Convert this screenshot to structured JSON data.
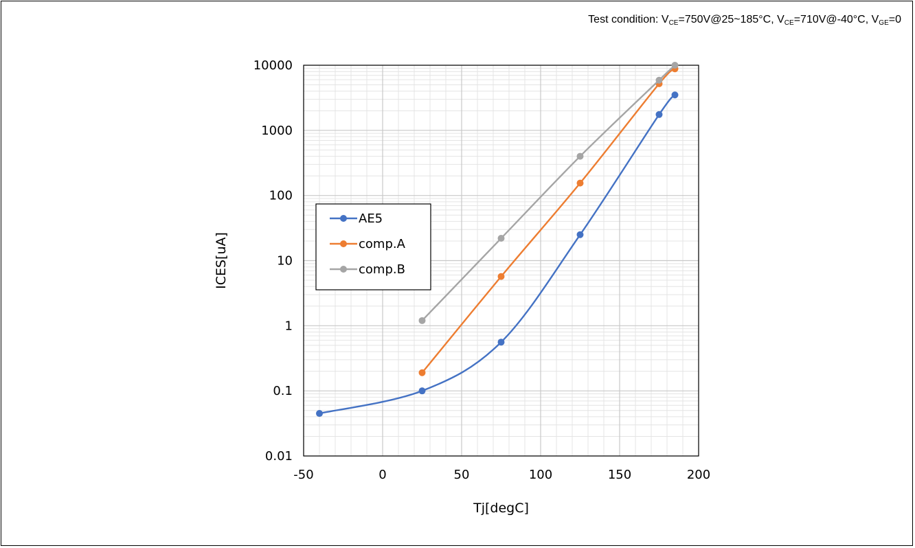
{
  "chart_data": {
    "type": "line",
    "title": "",
    "annotation": {
      "prefix": "Test condition: V",
      "sub1": "CE",
      "mid1": "=750V@25~185°C, V",
      "sub2": "CE",
      "mid2": "=710V@-40°C, V",
      "sub3": "GE",
      "end": "=0"
    },
    "xlabel": "Tj[degC]",
    "ylabel": "ICES[uA]",
    "xlim": [
      -50,
      200
    ],
    "ylim": [
      0.01,
      10000
    ],
    "yscale": "log",
    "grid": true,
    "legend_position": "left",
    "x_ticks": [
      -50,
      0,
      50,
      100,
      150,
      200
    ],
    "x_tick_labels": [
      "-50",
      "0",
      "50",
      "100",
      "150",
      "200"
    ],
    "y_ticks": [
      0.01,
      0.1,
      1,
      10,
      100,
      1000,
      10000
    ],
    "y_tick_labels": [
      "0.01",
      "0.1",
      "1",
      "10",
      "100",
      "1000",
      "10000"
    ],
    "series": [
      {
        "name": "AE5",
        "color": "#4472C4",
        "x": [
          -40,
          25,
          75,
          125,
          175,
          185
        ],
        "y": [
          0.045,
          0.1,
          0.56,
          25,
          1750,
          3500
        ]
      },
      {
        "name": "comp.A",
        "color": "#ED7D31",
        "x": [
          25,
          75,
          125,
          175,
          185
        ],
        "y": [
          0.19,
          5.7,
          155,
          5200,
          8800
        ]
      },
      {
        "name": "comp.B",
        "color": "#A5A5A5",
        "x": [
          25,
          75,
          125,
          175,
          185
        ],
        "y": [
          1.2,
          22,
          400,
          5900,
          10000
        ]
      }
    ]
  }
}
